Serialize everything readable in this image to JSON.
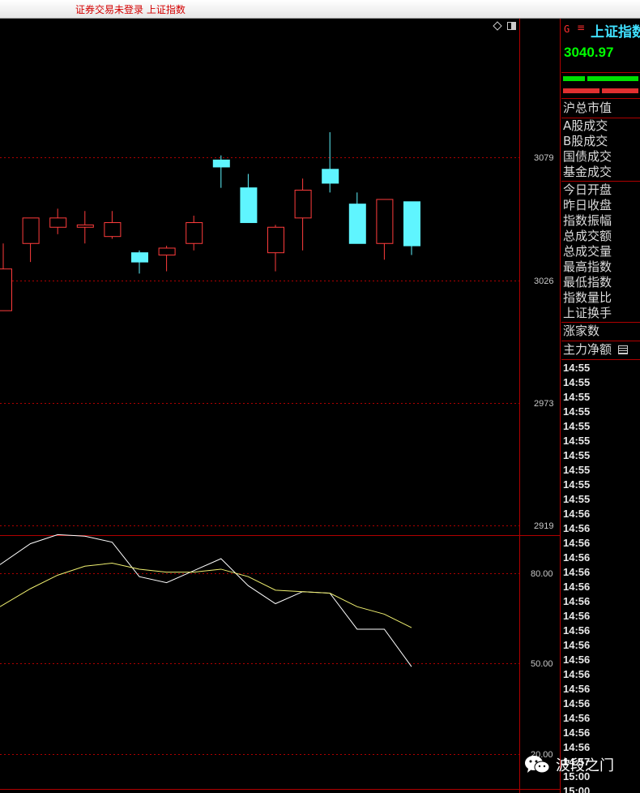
{
  "window": {
    "title": "证券交易未登录  上证指数"
  },
  "chart_toolbar": {
    "diamond_icon": "diamond-icon",
    "toggle_icon": "panel-toggle-icon"
  },
  "side_panel": {
    "g_label": "G",
    "menu_icon": "≡",
    "index_name": "上证指数",
    "current_price": "3040.97",
    "market_labels": [
      "沪总市值",
      "A股成交",
      "B股成交",
      "国债成交",
      "基金成交"
    ],
    "index_labels": [
      "今日开盘",
      "昨日收盘",
      "指数振幅",
      "总成交额",
      "总成交量",
      "最高指数",
      "最低指数",
      "指数量比",
      "上证换手"
    ],
    "rise_count_label": "涨家数",
    "main_net_label": "主力净额",
    "trade_times": [
      "14:55",
      "14:55",
      "14:55",
      "14:55",
      "14:55",
      "14:55",
      "14:55",
      "14:55",
      "14:55",
      "14:55",
      "14:56",
      "14:56",
      "14:56",
      "14:56",
      "14:56",
      "14:56",
      "14:56",
      "14:56",
      "14:56",
      "14:56",
      "14:56",
      "14:56",
      "14:56",
      "14:56",
      "14:56",
      "14:56",
      "14:56",
      "14:57",
      "15:00",
      "15:00"
    ]
  },
  "watermark": {
    "text": "波段之门",
    "icon": "wechat-icon"
  },
  "colors": {
    "up": "#ff3c3c",
    "down": "#5ff5ff",
    "grid": "#b00000",
    "k_line": "#ffffff",
    "d_line": "#f0f070",
    "price_green": "#00ff00",
    "name_cyan": "#40e0ff"
  },
  "chart_data": [
    {
      "type": "candlestick",
      "y_ticks": [
        "3079",
        "3026",
        "2973",
        "2919"
      ],
      "ylim": [
        2919,
        3090
      ],
      "candles": [
        {
          "open": 3013,
          "close": 3031,
          "high": 3042,
          "low": 3013
        },
        {
          "open": 3042,
          "close": 3053,
          "high": 3053,
          "low": 3034
        },
        {
          "open": 3049,
          "close": 3053,
          "high": 3057,
          "low": 3046
        },
        {
          "open": 3049,
          "close": 3050,
          "high": 3056,
          "low": 3042
        },
        {
          "open": 3045,
          "close": 3051,
          "high": 3056,
          "low": 3044
        },
        {
          "open": 3038,
          "close": 3034,
          "high": 3039,
          "low": 3029
        },
        {
          "open": 3037,
          "close": 3040,
          "high": 3041,
          "low": 3030
        },
        {
          "open": 3042,
          "close": 3051,
          "high": 3054,
          "low": 3039
        },
        {
          "open": 3078,
          "close": 3075,
          "high": 3080,
          "low": 3066
        },
        {
          "open": 3066,
          "close": 3051,
          "high": 3072,
          "low": 3051
        },
        {
          "open": 3038,
          "close": 3049,
          "high": 3050,
          "low": 3030
        },
        {
          "open": 3053,
          "close": 3065,
          "high": 3070,
          "low": 3039
        },
        {
          "open": 3074,
          "close": 3068,
          "high": 3090,
          "low": 3064
        },
        {
          "open": 3059,
          "close": 3042,
          "high": 3064,
          "low": 3042
        },
        {
          "open": 3042,
          "close": 3061,
          "high": 3061,
          "low": 3035
        },
        {
          "open": 3060,
          "close": 3041,
          "high": 3060,
          "low": 3037
        }
      ]
    },
    {
      "type": "line",
      "y_ticks": [
        "80.00",
        "50.00",
        "20.00"
      ],
      "ylim": [
        20,
        100
      ],
      "series": [
        {
          "values": [
            83,
            90,
            93,
            92.5,
            90.5,
            79,
            77,
            81,
            85,
            76,
            70,
            74,
            73.5,
            61.5,
            61.5,
            49
          ]
        },
        {
          "values": [
            69,
            75,
            79.5,
            82.5,
            83.5,
            81.5,
            80.5,
            80.5,
            81.5,
            79,
            74.5,
            74,
            73.5,
            69,
            66.5,
            62
          ]
        }
      ]
    }
  ]
}
